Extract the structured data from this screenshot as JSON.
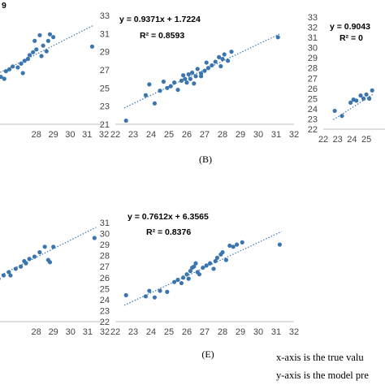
{
  "colors": {
    "point": "#3b75af",
    "trend": "#3b75af",
    "axis": "#bfbfbf",
    "text": "#000000"
  },
  "notes": [
    "x-axis is the true valu",
    "y-axis is the model pre"
  ],
  "chart_data": [
    {
      "type": "scatter",
      "panel_label": "",
      "equation": "",
      "r2_text": "",
      "equation_partial": "9",
      "xlim": [
        22,
        32
      ],
      "ylim": [
        21,
        33
      ],
      "xticks": [
        "28",
        "29",
        "30",
        "31",
        "32"
      ],
      "yticks": [],
      "trend": {
        "slope": 0.9,
        "intercept": 3.2
      },
      "x": [
        22.8,
        23.6,
        24.1,
        24.5,
        24.9,
        25.3,
        25.6,
        25.9,
        26.2,
        26.4,
        26.6,
        26.9,
        27.1,
        27.3,
        27.5,
        27.6,
        27.8,
        28.0,
        28.2,
        28.4,
        28.6,
        28.8,
        29.0,
        27.2,
        27.9,
        28.3,
        28.7,
        26.1,
        25.2,
        31.3
      ],
      "y": [
        23.3,
        24.0,
        24.6,
        25.0,
        25.2,
        25.6,
        26.4,
        26.0,
        26.6,
        26.8,
        27.1,
        27.0,
        27.4,
        27.7,
        27.9,
        28.3,
        28.6,
        28.9,
        30.4,
        29.3,
        28.7,
        30.5,
        30.2,
        26.4,
        29.8,
        28.2,
        29.8,
        25.8,
        26.2,
        29.2
      ]
    },
    {
      "type": "scatter",
      "panel_label": "(B)",
      "equation": "y = 0.9371x + 1.7224",
      "r2_text": "R² = 0.8593",
      "xlim": [
        22,
        32
      ],
      "ylim": [
        21,
        33
      ],
      "xticks": [
        "22",
        "23",
        "24",
        "25",
        "26",
        "27",
        "28",
        "29",
        "30",
        "31",
        "32"
      ],
      "yticks": [
        "21",
        "23",
        "25",
        "27",
        "29",
        "31",
        "33"
      ],
      "trend": {
        "slope": 0.9371,
        "intercept": 1.7224
      },
      "x": [
        22.6,
        23.7,
        23.9,
        24.2,
        24.5,
        24.9,
        25.1,
        25.3,
        25.5,
        25.7,
        25.8,
        26.0,
        26.1,
        26.2,
        26.3,
        26.5,
        26.6,
        26.8,
        27.0,
        27.2,
        27.4,
        27.6,
        27.8,
        28.0,
        28.1,
        28.3,
        28.5,
        27.1,
        26.4,
        25.9,
        24.7,
        26.8,
        27.9,
        31.1
      ],
      "y": [
        21.4,
        24.2,
        25.4,
        23.3,
        24.7,
        25.0,
        25.2,
        25.6,
        24.8,
        25.8,
        26.4,
        25.6,
        26.5,
        26.0,
        26.7,
        26.3,
        27.1,
        26.6,
        26.9,
        27.2,
        27.5,
        27.9,
        28.4,
        28.2,
        28.7,
        28.0,
        29.0,
        27.8,
        25.5,
        26.0,
        25.7,
        26.3,
        27.4,
        30.6
      ]
    },
    {
      "type": "scatter",
      "panel_label": "",
      "equation": "y = 0.9043",
      "r2_text": "R² = 0",
      "xlim": [
        22,
        32
      ],
      "ylim": [
        22,
        33
      ],
      "xticks": [
        "22",
        "23",
        "24",
        "25"
      ],
      "yticks": [
        "22",
        "23",
        "24",
        "25",
        "26",
        "27",
        "28",
        "29",
        "30",
        "31",
        "32",
        "33"
      ],
      "trend": {
        "slope": 0.9043,
        "intercept": 2.4
      },
      "x": [
        22.8,
        23.3,
        23.9,
        24.1,
        24.3,
        24.6,
        24.8,
        25.0,
        25.2,
        25.4
      ],
      "y": [
        23.8,
        23.3,
        24.6,
        24.9,
        24.8,
        25.3,
        25.0,
        25.4,
        25.0,
        25.8
      ]
    },
    {
      "type": "scatter",
      "panel_label": "",
      "equation": "",
      "r2_text": "",
      "xlim": [
        22,
        32
      ],
      "ylim": [
        22,
        31
      ],
      "xticks": [
        "28",
        "29",
        "30",
        "31",
        "32"
      ],
      "yticks": [],
      "trend": {
        "slope": 0.78,
        "intercept": 6.0
      },
      "x": [
        22.8,
        23.6,
        24.1,
        24.6,
        25.0,
        25.5,
        25.8,
        26.1,
        26.4,
        26.8,
        27.1,
        27.3,
        27.6,
        27.9,
        28.2,
        28.5,
        28.7,
        29.0,
        27.4,
        28.8,
        26.5,
        31.4
      ],
      "y": [
        23.7,
        24.2,
        24.6,
        24.9,
        25.2,
        25.6,
        25.9,
        26.2,
        26.5,
        26.8,
        27.0,
        27.5,
        27.7,
        27.9,
        28.3,
        28.8,
        27.6,
        28.8,
        27.3,
        27.4,
        26.2,
        29.6
      ]
    },
    {
      "type": "scatter",
      "panel_label": "(E)",
      "equation": "y = 0.7612x + 6.3565",
      "r2_text": "R² = 0.8376",
      "xlim": [
        22,
        32
      ],
      "ylim": [
        22,
        31
      ],
      "xticks": [
        "22",
        "23",
        "24",
        "25",
        "26",
        "27",
        "28",
        "29",
        "30",
        "31",
        "32"
      ],
      "yticks": [
        "22",
        "23",
        "24",
        "25",
        "26",
        "27",
        "28",
        "29",
        "30",
        "31"
      ],
      "trend": {
        "slope": 0.7612,
        "intercept": 6.3565
      },
      "x": [
        22.6,
        23.7,
        23.9,
        24.2,
        24.5,
        24.9,
        25.3,
        25.5,
        25.7,
        25.8,
        26.0,
        26.1,
        26.2,
        26.3,
        26.4,
        26.6,
        26.7,
        26.9,
        27.1,
        27.3,
        27.5,
        27.7,
        27.9,
        28.0,
        28.2,
        28.4,
        28.6,
        28.8,
        29.1,
        26.5,
        27.6,
        31.2
      ],
      "y": [
        24.4,
        24.3,
        24.8,
        24.2,
        24.8,
        24.7,
        25.6,
        25.8,
        25.5,
        26.0,
        26.3,
        25.9,
        26.6,
        26.9,
        27.0,
        26.5,
        26.3,
        26.9,
        27.1,
        27.3,
        26.8,
        27.8,
        28.1,
        28.3,
        27.6,
        28.9,
        28.8,
        29.0,
        29.2,
        27.3,
        27.5,
        29.0
      ]
    }
  ]
}
